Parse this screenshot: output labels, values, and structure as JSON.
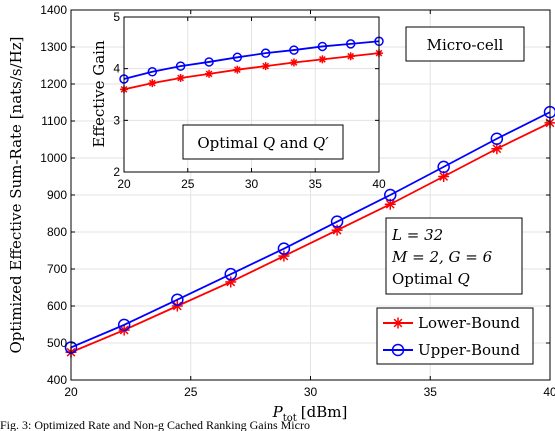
{
  "chart_data": [
    {
      "type": "line",
      "x": [
        20,
        22.22,
        24.44,
        26.67,
        28.89,
        31.11,
        33.33,
        35.56,
        37.78,
        40
      ],
      "xlim": [
        20,
        40
      ],
      "ylim": [
        400,
        1400
      ],
      "xticks": [
        20,
        25,
        30,
        35,
        40
      ],
      "yticks": [
        400,
        500,
        600,
        700,
        800,
        900,
        1000,
        1100,
        1200,
        1300,
        1400
      ],
      "xlabel_main": "P",
      "xlabel_sub": "tot",
      "xlabel_unit": "[dBm]",
      "ylabel": "Optimized Effective Sum-Rate [nats/s/Hz]",
      "grid": true,
      "legend_position": "bottom-right",
      "series": [
        {
          "name": "Lower-Bound",
          "color": "#ff0000",
          "marker": "asterisk",
          "values": [
            475,
            535,
            600,
            665,
            735,
            805,
            875,
            950,
            1025,
            1095
          ]
        },
        {
          "name": "Upper-Bound",
          "color": "#0000ff",
          "marker": "circle",
          "values": [
            488,
            549,
            617,
            686,
            755,
            828,
            900,
            976,
            1052,
            1124
          ]
        }
      ],
      "annotations": {
        "micro_cell": "Micro-cell",
        "params_line1": "L = 32",
        "params_line2": "M = 2, G = 6",
        "params_line3_prefix": "Optimal ",
        "params_line3_var": "Q"
      }
    },
    {
      "type": "line",
      "x": [
        20,
        22.22,
        24.44,
        26.67,
        28.89,
        31.11,
        33.33,
        35.56,
        37.78,
        40
      ],
      "xlim": [
        20,
        40
      ],
      "ylim": [
        2,
        5
      ],
      "xticks": [
        20,
        25,
        30,
        35,
        40
      ],
      "yticks": [
        2,
        3,
        4,
        5
      ],
      "ylabel": "Effective Gain",
      "grid": true,
      "series": [
        {
          "name": "Lower-Bound",
          "color": "#ff0000",
          "marker": "asterisk",
          "values": [
            3.6,
            3.72,
            3.82,
            3.9,
            3.98,
            4.05,
            4.12,
            4.18,
            4.24,
            4.3
          ]
        },
        {
          "name": "Upper-Bound",
          "color": "#0000ff",
          "marker": "circle",
          "values": [
            3.8,
            3.94,
            4.05,
            4.13,
            4.22,
            4.3,
            4.36,
            4.43,
            4.48,
            4.53
          ]
        }
      ],
      "annotations": {
        "box_prefix": "Optimal ",
        "box_var1": "Q",
        "box_mid": " and ",
        "box_var2": "Q′"
      }
    }
  ],
  "caption": "Fig. 3: Optimized Rate and Non-g Cached Ranking Gains Micro"
}
